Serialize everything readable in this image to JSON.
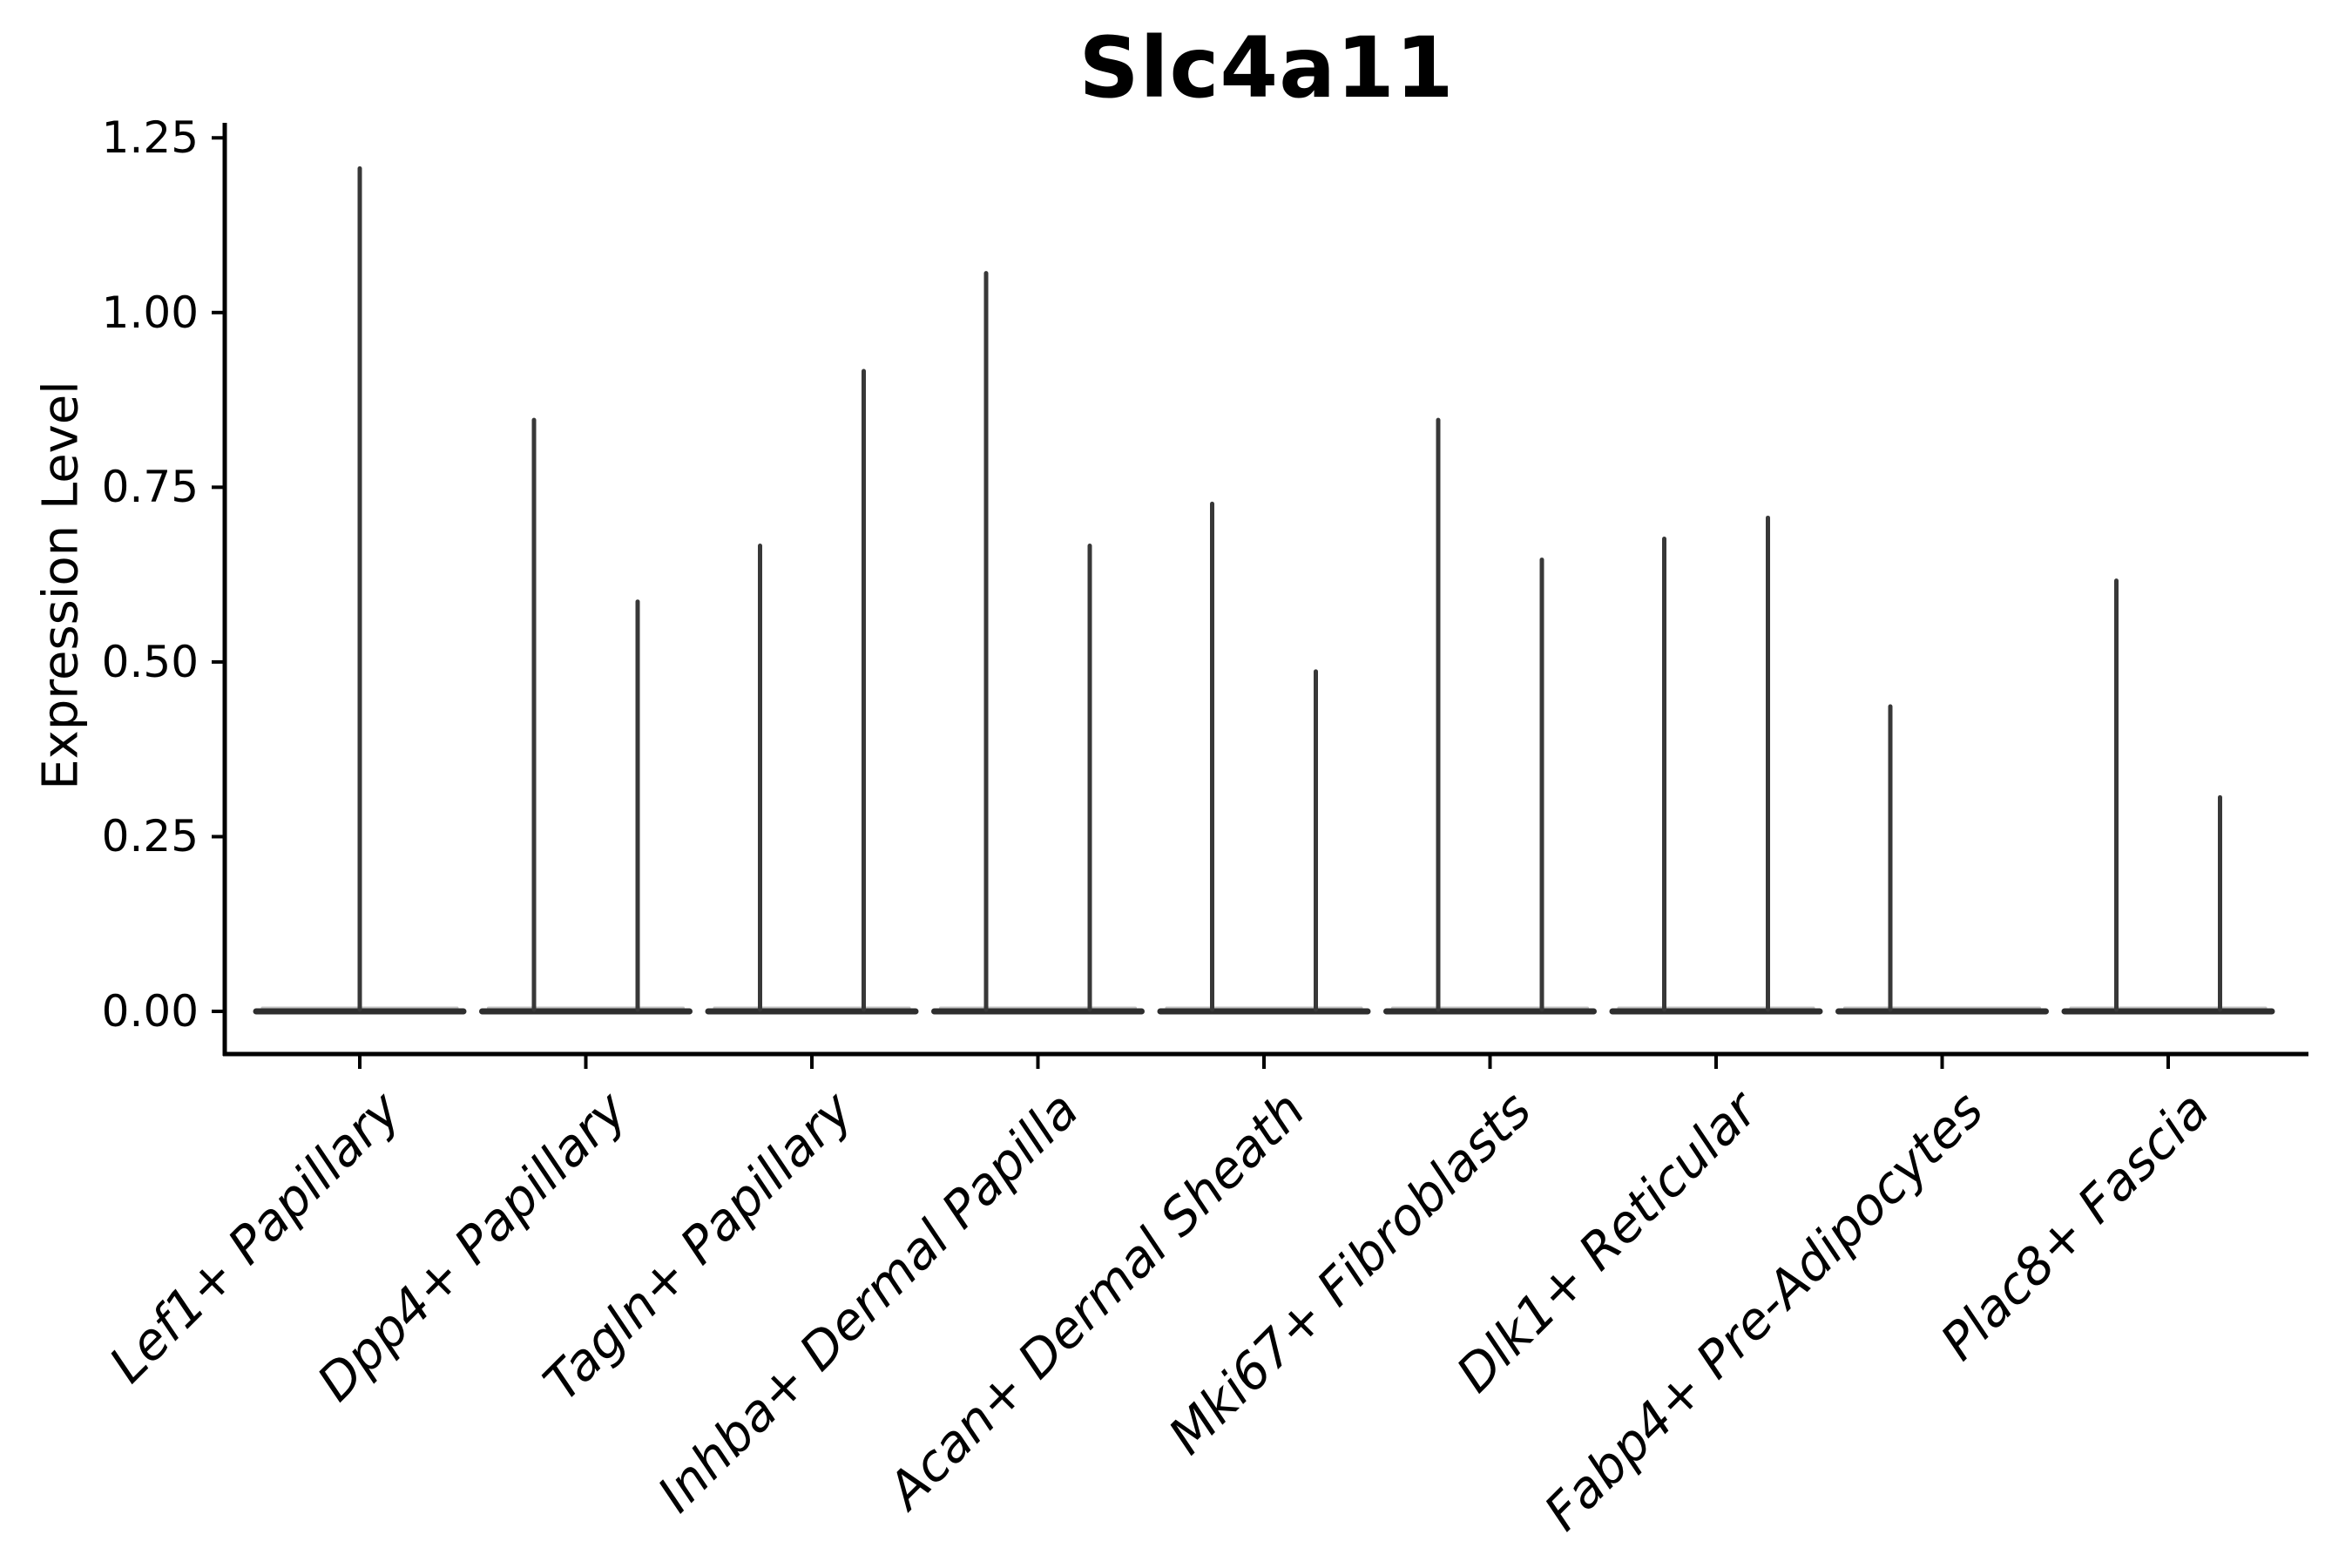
{
  "figure": {
    "background": "#ffffff",
    "spine_color": "#000000",
    "violin_line_color": "#2e2e2e",
    "spike_color": "#383838",
    "violin_halo_color": "#909090",
    "text_color": "#000000"
  },
  "chart_data": {
    "type": "violin",
    "title": "Slc4a11",
    "xlabel": "",
    "ylabel": "Expression Level",
    "grid": false,
    "legend": null,
    "ylim": [
      -0.061,
      1.272
    ],
    "yticks": [
      0,
      0.25,
      0.5,
      0.75,
      1.0,
      1.25
    ],
    "ytick_labels": [
      "0.00",
      "0.25",
      "0.50",
      "0.75",
      "1.00",
      "1.25"
    ],
    "categories": [
      "Lef1+ Papillary",
      "Dpp4+ Papillary",
      "Tagln+ Papillary",
      "Inhba+ Dermal Papilla",
      "Acan+ Dermal Sheath",
      "Mki67+ Fibroblasts",
      "Dlk1+ Reticular",
      "Fabp4+ Pre-Adipocytes",
      "Plac8+ Fascia"
    ],
    "baseline_value": 0,
    "violins": [
      {
        "category": "Lef1+ Papillary",
        "spikes": [
          {
            "offset": 0,
            "max": 1.21
          }
        ]
      },
      {
        "category": "Dpp4+ Papillary",
        "spikes": [
          {
            "offset": -0.25,
            "max": 0.85
          },
          {
            "offset": 0.25,
            "max": 0.59
          }
        ]
      },
      {
        "category": "Tagln+ Papillary",
        "spikes": [
          {
            "offset": -0.25,
            "max": 0.67
          },
          {
            "offset": 0.25,
            "max": 0.92
          }
        ]
      },
      {
        "category": "Inhba+ Dermal Papilla",
        "spikes": [
          {
            "offset": -0.25,
            "max": 1.06
          },
          {
            "offset": 0.25,
            "max": 0.67
          }
        ]
      },
      {
        "category": "Acan+ Dermal Sheath",
        "spikes": [
          {
            "offset": -0.25,
            "max": 0.73
          },
          {
            "offset": 0.25,
            "max": 0.49
          }
        ]
      },
      {
        "category": "Mki67+ Fibroblasts",
        "spikes": [
          {
            "offset": -0.25,
            "max": 0.85
          },
          {
            "offset": 0.25,
            "max": 0.65
          }
        ]
      },
      {
        "category": "Dlk1+ Reticular",
        "spikes": [
          {
            "offset": -0.25,
            "max": 0.68
          },
          {
            "offset": 0.25,
            "max": 0.71
          }
        ]
      },
      {
        "category": "Fabp4+ Pre-Adipocytes",
        "spikes": [
          {
            "offset": -0.25,
            "max": 0.44
          }
        ]
      },
      {
        "category": "Plac8+ Fascia",
        "spikes": [
          {
            "offset": -0.25,
            "max": 0.62
          },
          {
            "offset": 0.25,
            "max": 0.31
          }
        ]
      }
    ]
  }
}
